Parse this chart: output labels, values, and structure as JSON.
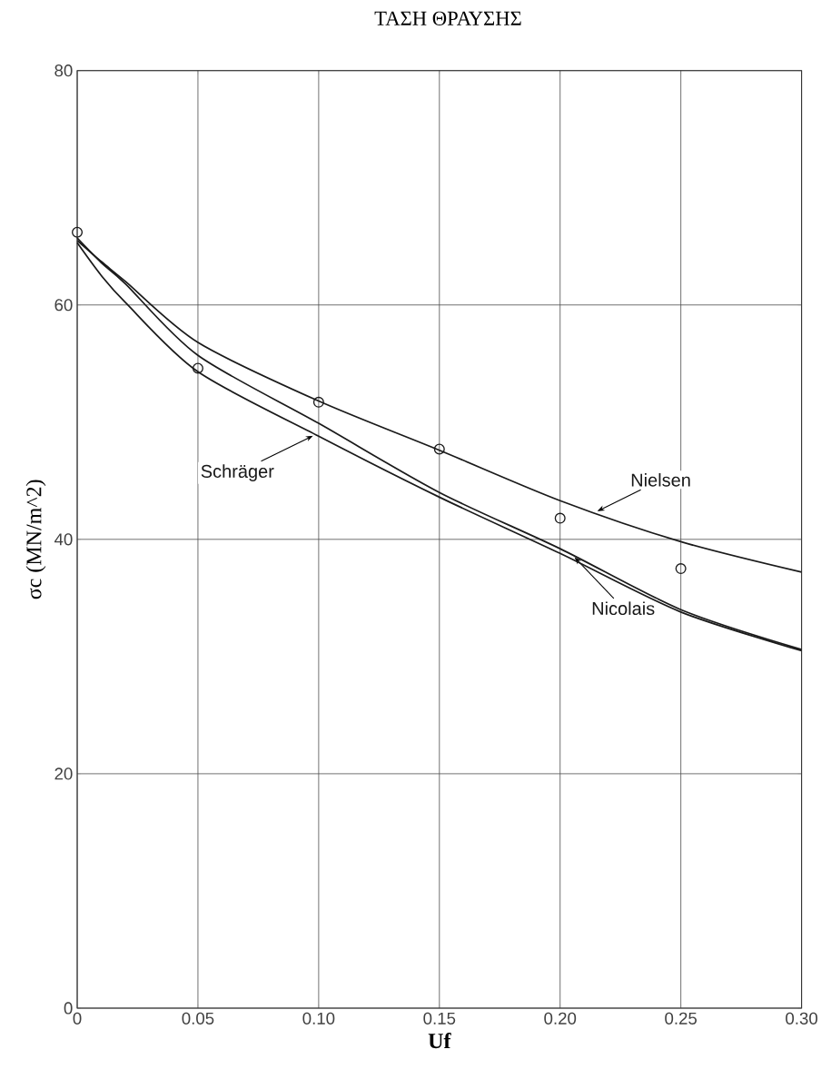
{
  "chart_data": {
    "type": "line",
    "title": "ΤΑΣΗ ΘΡΑΥΣΗΣ",
    "xlabel": "Uf",
    "ylabel": "σc (MN/m^2)",
    "xlim": [
      0,
      0.3
    ],
    "ylim": [
      0,
      80
    ],
    "xticks": [
      {
        "value": 0,
        "label": "0"
      },
      0.05,
      {
        "value": 0.1,
        "label": "0.10"
      },
      0.15,
      {
        "value": 0.2,
        "label": "0.20"
      },
      0.25,
      {
        "value": 0.3,
        "label": "0.30"
      }
    ],
    "yticks": [
      0,
      20,
      40,
      60,
      80
    ],
    "grid": true,
    "line_style": "solid",
    "series": [
      {
        "name": "Nielsen",
        "color": "#1a1a1a",
        "x": [
          0,
          0.01,
          0.02,
          0.05,
          0.1,
          0.15,
          0.2,
          0.25,
          0.3
        ],
        "values": [
          65.5,
          63.7,
          62.0,
          56.8,
          51.8,
          47.6,
          43.3,
          39.8,
          37.2
        ]
      },
      {
        "name": "Nicolais",
        "color": "#1a1a1a",
        "x": [
          0,
          0.01,
          0.02,
          0.05,
          0.1,
          0.15,
          0.2,
          0.25,
          0.3
        ],
        "values": [
          65.7,
          63.6,
          61.8,
          55.7,
          49.9,
          44.0,
          39.2,
          34.0,
          30.6
        ]
      },
      {
        "name": "Schräger",
        "color": "#1a1a1a",
        "x": [
          0,
          0.01,
          0.02,
          0.05,
          0.1,
          0.15,
          0.2,
          0.25,
          0.3
        ],
        "values": [
          65.3,
          62.5,
          60.2,
          54.3,
          48.8,
          43.6,
          38.8,
          33.8,
          30.5
        ]
      },
      {
        "type": "scatter",
        "marker": "circle",
        "color": "#1a1a1a",
        "x": [
          0,
          0.05,
          0.1,
          0.15,
          0.2,
          0.25
        ],
        "values": [
          66.2,
          54.6,
          51.7,
          47.7,
          41.8,
          37.5
        ]
      }
    ]
  }
}
